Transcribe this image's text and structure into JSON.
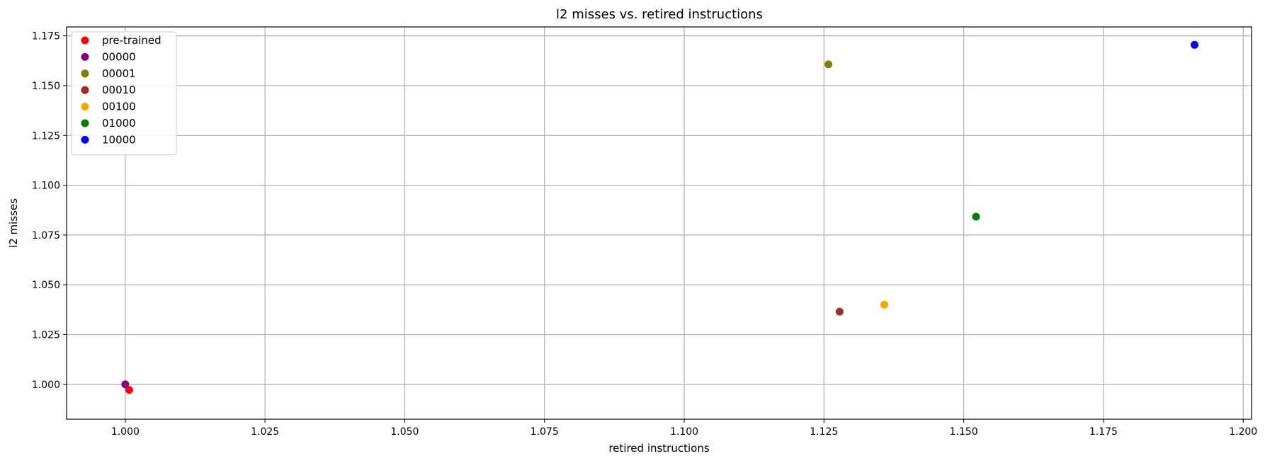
{
  "chart_data": {
    "type": "scatter",
    "title": "l2 misses vs. retired instructions",
    "xlabel": "retired instructions",
    "ylabel": "l2 misses",
    "xlim": [
      0.9895,
      1.2015
    ],
    "ylim": [
      0.9825,
      1.1795
    ],
    "xticks": [
      1.0,
      1.025,
      1.05,
      1.075,
      1.1,
      1.125,
      1.15,
      1.175,
      1.2
    ],
    "yticks": [
      1.0,
      1.025,
      1.05,
      1.075,
      1.1,
      1.125,
      1.15,
      1.175
    ],
    "xtick_labels": [
      "1.000",
      "1.025",
      "1.050",
      "1.075",
      "1.100",
      "1.125",
      "1.150",
      "1.175",
      "1.200"
    ],
    "ytick_labels": [
      "1.000",
      "1.025",
      "1.050",
      "1.075",
      "1.100",
      "1.125",
      "1.150",
      "1.175"
    ],
    "grid": true,
    "legend_position": "top-left",
    "series": [
      {
        "name": "pre-trained",
        "color": "#ff0000",
        "x": [
          1.0007
        ],
        "y": [
          0.9972
        ]
      },
      {
        "name": "00000",
        "color": "#800080",
        "x": [
          1.0
        ],
        "y": [
          1.0
        ]
      },
      {
        "name": "00001",
        "color": "#808000",
        "x": [
          1.1258
        ],
        "y": [
          1.1607
        ]
      },
      {
        "name": "00010",
        "color": "#a52a2a",
        "x": [
          1.1278
        ],
        "y": [
          1.0365
        ]
      },
      {
        "name": "00100",
        "color": "#ffa500",
        "x": [
          1.1358
        ],
        "y": [
          1.04
        ]
      },
      {
        "name": "01000",
        "color": "#008000",
        "x": [
          1.1522
        ],
        "y": [
          1.0842
        ]
      },
      {
        "name": "10000",
        "color": "#0000ff",
        "x": [
          1.1913
        ],
        "y": [
          1.1705
        ]
      }
    ]
  }
}
